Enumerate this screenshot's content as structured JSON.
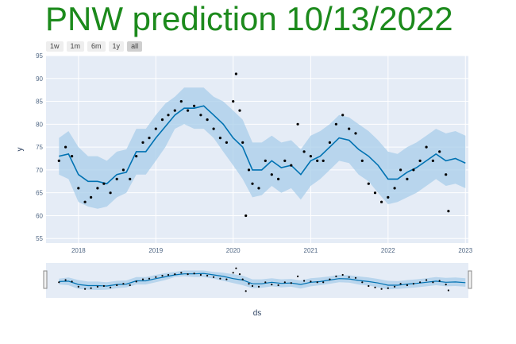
{
  "title": "PNW prediction 10/13/2022",
  "range_buttons": [
    "1w",
    "1m",
    "6m",
    "1y",
    "all"
  ],
  "active_range": "all",
  "colors": {
    "title": "#1c8a1c",
    "plot_bg": "#e5ecf6",
    "forecast_line": "#0072b2",
    "uncertainty_band": "#a8cdea",
    "actual_points": "#000000"
  },
  "chart_data": {
    "type": "line",
    "title": "PNW prediction 10/13/2022",
    "xlabel": "ds",
    "ylabel": "y",
    "ylim": [
      54,
      95
    ],
    "xlim": [
      "2017-08-01",
      "2023-01-15"
    ],
    "yticks": [
      55,
      60,
      65,
      70,
      75,
      80,
      85,
      90,
      95
    ],
    "xticks": [
      "2018",
      "2019",
      "2020",
      "2021",
      "2022",
      "2023"
    ],
    "grid": true,
    "legend": "none",
    "series": [
      {
        "kind": "forecast",
        "x": [
          "2017-10-01",
          "2017-11-15",
          "2018-01-01",
          "2018-02-15",
          "2018-04-01",
          "2018-05-15",
          "2018-07-01",
          "2018-08-15",
          "2018-10-01",
          "2018-11-15",
          "2019-01-01",
          "2019-02-15",
          "2019-04-01",
          "2019-05-15",
          "2019-07-01",
          "2019-08-15",
          "2019-10-01",
          "2019-11-15",
          "2020-01-01",
          "2020-02-15",
          "2020-04-01",
          "2020-05-15",
          "2020-07-01",
          "2020-08-15",
          "2020-10-01",
          "2020-11-15",
          "2021-01-01",
          "2021-02-15",
          "2021-04-01",
          "2021-05-15",
          "2021-07-01",
          "2021-08-15",
          "2021-10-01",
          "2021-11-15",
          "2022-01-01",
          "2022-02-15",
          "2022-04-01",
          "2022-05-15",
          "2022-07-01",
          "2022-08-15",
          "2022-10-01",
          "2022-11-15",
          "2023-01-01"
        ],
        "values": [
          73,
          73.5,
          69,
          67.5,
          67.5,
          67,
          69,
          69.5,
          74,
          74,
          77,
          79.5,
          82,
          83.5,
          83.5,
          84,
          82,
          80,
          77,
          75,
          70,
          70,
          72,
          70.5,
          71,
          69,
          72,
          73,
          75,
          77,
          76.5,
          74.5,
          73,
          71,
          68,
          68,
          69.5,
          70.5,
          72,
          73.5,
          72,
          72.5,
          71.5
        ],
        "lower": [
          69,
          68,
          63,
          62,
          61.5,
          62,
          64,
          65,
          69,
          69,
          72,
          75,
          79,
          80,
          79,
          79,
          77,
          74,
          71,
          68,
          64,
          64.5,
          66.5,
          65,
          66,
          63.5,
          66.5,
          68,
          70,
          72,
          71.5,
          69,
          67.5,
          65,
          62.5,
          63,
          64,
          65,
          66.5,
          68,
          66.5,
          67,
          66
        ],
        "upper": [
          77,
          78.5,
          75,
          73,
          73,
          72,
          74,
          74.5,
          79,
          79,
          82,
          84.5,
          86,
          88,
          88,
          88,
          86,
          85,
          83,
          81,
          76,
          76,
          77.5,
          76,
          76.5,
          74.5,
          77.5,
          78.5,
          80,
          82,
          81.5,
          80,
          78.5,
          76.5,
          74,
          73.5,
          75,
          76,
          77.5,
          79,
          78,
          78.5,
          77.5
        ]
      },
      {
        "kind": "actual",
        "x": [
          "2017-10-01",
          "2017-11-01",
          "2017-12-01",
          "2018-01-01",
          "2018-02-01",
          "2018-03-01",
          "2018-04-01",
          "2018-05-01",
          "2018-06-01",
          "2018-07-01",
          "2018-08-01",
          "2018-09-01",
          "2018-10-01",
          "2018-11-01",
          "2018-12-01",
          "2019-01-01",
          "2019-02-01",
          "2019-03-01",
          "2019-04-01",
          "2019-05-01",
          "2019-06-01",
          "2019-07-01",
          "2019-08-01",
          "2019-09-01",
          "2019-10-01",
          "2019-11-01",
          "2019-12-01",
          "2020-01-01",
          "2020-01-15",
          "2020-02-01",
          "2020-02-15",
          "2020-03-01",
          "2020-03-15",
          "2020-04-01",
          "2020-05-01",
          "2020-06-01",
          "2020-07-01",
          "2020-08-01",
          "2020-09-01",
          "2020-10-01",
          "2020-11-01",
          "2020-12-01",
          "2021-01-01",
          "2021-02-01",
          "2021-03-01",
          "2021-04-01",
          "2021-05-01",
          "2021-06-01",
          "2021-07-01",
          "2021-08-01",
          "2021-09-01",
          "2021-10-01",
          "2021-11-01",
          "2021-12-01",
          "2022-01-01",
          "2022-02-01",
          "2022-03-01",
          "2022-04-01",
          "2022-05-01",
          "2022-06-01",
          "2022-07-01",
          "2022-08-01",
          "2022-09-01",
          "2022-10-01",
          "2022-10-13"
        ],
        "values": [
          72,
          75,
          73,
          66,
          63,
          64,
          66,
          67,
          65,
          68,
          70,
          68,
          73,
          76,
          77,
          79,
          81,
          82,
          83,
          85,
          83,
          84,
          82,
          81,
          79,
          77,
          76,
          85,
          91,
          83,
          76,
          60,
          70,
          67,
          66,
          72,
          69,
          68,
          72,
          71,
          80,
          74,
          73,
          72,
          72,
          76,
          80,
          82,
          79,
          78,
          72,
          67,
          65,
          63,
          64,
          66,
          70,
          68,
          70,
          72,
          75,
          72,
          74,
          69,
          61
        ]
      }
    ]
  }
}
